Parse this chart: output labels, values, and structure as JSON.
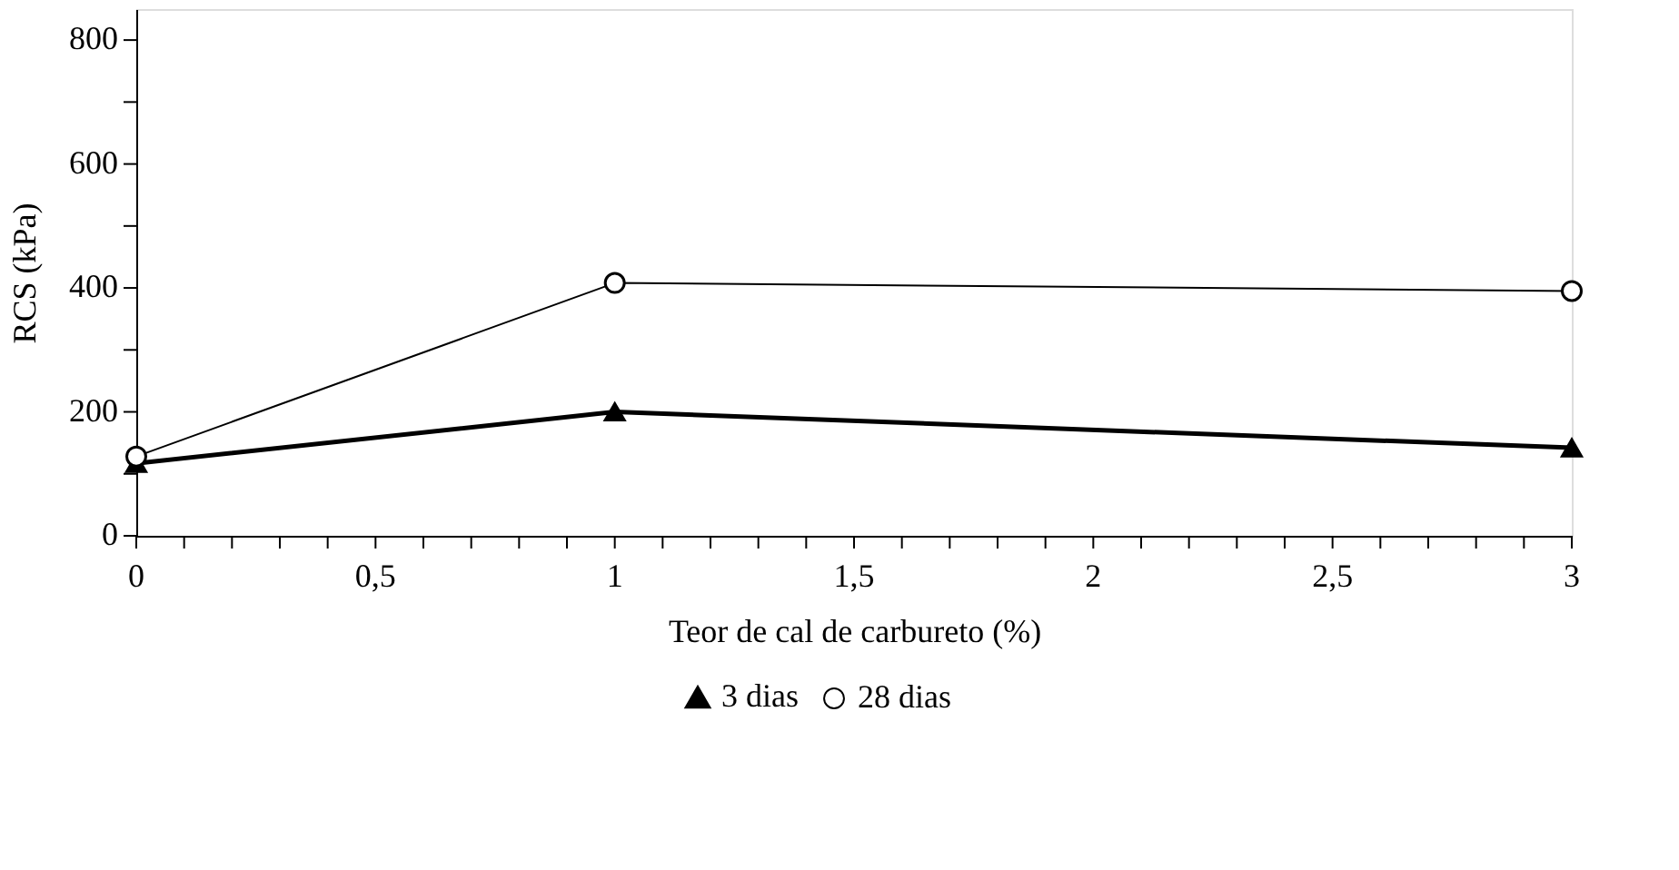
{
  "chart_data": {
    "type": "line",
    "xlabel": "Teor de cal de carbureto (%)",
    "ylabel": "RCS (kPa)",
    "x": [
      0,
      1,
      3
    ],
    "series": [
      {
        "name": "3 dias",
        "color": "#000000",
        "marker": "triangle",
        "values": [
          117,
          200,
          142
        ]
      },
      {
        "name": "28 dias",
        "color": "#000000",
        "marker": "circle",
        "values": [
          128,
          408,
          395
        ]
      }
    ],
    "xlim": [
      0,
      3
    ],
    "ylim": [
      0,
      850
    ],
    "xticks": [
      0,
      {
        "value": 0.1,
        "label": null
      },
      {
        "value": 0.2,
        "label": null
      },
      {
        "value": 0.3,
        "label": null
      },
      {
        "value": 0.4,
        "label": null
      },
      {
        "value": 0.5,
        "label": "0,5"
      },
      {
        "value": 0.6,
        "label": null
      },
      {
        "value": 0.7,
        "label": null
      },
      {
        "value": 0.8,
        "label": null
      },
      {
        "value": 0.9,
        "label": null
      },
      1,
      {
        "value": 1.1,
        "label": null
      },
      {
        "value": 1.2,
        "label": null
      },
      {
        "value": 1.3,
        "label": null
      },
      {
        "value": 1.4,
        "label": null
      },
      {
        "value": 1.5,
        "label": "1,5"
      },
      {
        "value": 1.6,
        "label": null
      },
      {
        "value": 1.7,
        "label": null
      },
      {
        "value": 1.8,
        "label": null
      },
      {
        "value": 1.9,
        "label": null
      },
      2,
      {
        "value": 2.1,
        "label": null
      },
      {
        "value": 2.2,
        "label": null
      },
      {
        "value": 2.3,
        "label": null
      },
      {
        "value": 2.4,
        "label": null
      },
      {
        "value": 2.5,
        "label": "2,5"
      },
      {
        "value": 2.6,
        "label": null
      },
      {
        "value": 2.7,
        "label": null
      },
      {
        "value": 2.8,
        "label": null
      },
      {
        "value": 2.9,
        "label": null
      },
      3
    ],
    "yticks": [
      0,
      {
        "value": 100,
        "label": null
      },
      200,
      {
        "value": 300,
        "label": null
      },
      400,
      {
        "value": 500,
        "label": null
      },
      600,
      {
        "value": 700,
        "label": null
      },
      800
    ],
    "legend": "bottom",
    "grid": false
  }
}
